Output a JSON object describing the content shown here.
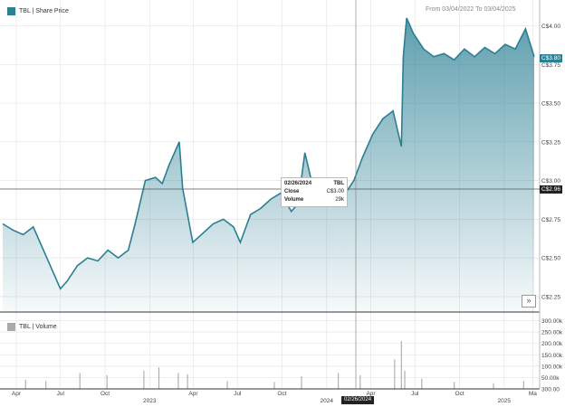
{
  "header": {
    "price_legend": "TBL | Share Price",
    "volume_legend": "TBL | Volume",
    "date_range": "From 03/04/2022 To 03/04/2025"
  },
  "tooltip": {
    "date": "02/26/2024",
    "ticker": "TBL",
    "close_label": "Close",
    "close_value": "C$3.00",
    "volume_label": "Volume",
    "volume_value": "29k"
  },
  "tags": {
    "last_price": "C$3.80",
    "cursor_price": "C$2.96",
    "cursor_date": "02/26/2024"
  },
  "colors": {
    "series": "#2a7f93",
    "volume": "#aaaaaa",
    "grid": "#e6e6e6",
    "tag_dark": "#222222"
  },
  "chart_data": [
    {
      "type": "area",
      "x_start": "2022-03-04",
      "x_end": "2025-03-04",
      "ylim": [
        2.15,
        4.12
      ],
      "y_ticks": [
        "C$2.25",
        "C$2.50",
        "C$2.75",
        "C$3.00",
        "C$3.25",
        "C$3.50",
        "C$3.75",
        "C$4.00"
      ],
      "y_tick_values": [
        2.25,
        2.5,
        2.75,
        3.0,
        3.25,
        3.5,
        3.75,
        4.0
      ],
      "x_ticks": [
        "Apr",
        "Jul",
        "Oct",
        "2023",
        "Apr",
        "Jul",
        "Oct",
        "2024",
        "Apr",
        "Jul",
        "Oct",
        "2025",
        "Ma"
      ],
      "x_tick_dates": [
        "2022-04-01",
        "2022-07-01",
        "2022-10-01",
        "2023-01-01",
        "2023-04-01",
        "2023-07-01",
        "2023-10-01",
        "2024-01-01",
        "2024-04-01",
        "2024-07-01",
        "2024-10-01",
        "2025-01-01",
        "2025-03-01"
      ],
      "series": [
        {
          "x": [
            "2022-03-04",
            "2022-03-25",
            "2022-04-15",
            "2022-05-06",
            "2022-05-27",
            "2022-06-17",
            "2022-07-01",
            "2022-07-15",
            "2022-08-05",
            "2022-08-26",
            "2022-09-16",
            "2022-10-07",
            "2022-10-28",
            "2022-11-18",
            "2022-12-02",
            "2022-12-23",
            "2023-01-13",
            "2023-01-27",
            "2023-02-10",
            "2023-03-03",
            "2023-03-10",
            "2023-03-31",
            "2023-04-21",
            "2023-05-12",
            "2023-06-02",
            "2023-06-23",
            "2023-07-07",
            "2023-07-28",
            "2023-08-18",
            "2023-09-08",
            "2023-09-29",
            "2023-10-20",
            "2023-11-03",
            "2023-11-17",
            "2023-12-08",
            "2023-12-29",
            "2024-01-19",
            "2024-02-09",
            "2024-02-26",
            "2024-03-15",
            "2024-04-05",
            "2024-04-26",
            "2024-05-17",
            "2024-06-03",
            "2024-06-07",
            "2024-06-14",
            "2024-06-28",
            "2024-07-19",
            "2024-08-09",
            "2024-08-30",
            "2024-09-20",
            "2024-10-11",
            "2024-11-01",
            "2024-11-22",
            "2024-12-13",
            "2025-01-03",
            "2025-01-24",
            "2025-02-14",
            "2025-03-04"
          ],
          "values": [
            2.72,
            2.68,
            2.65,
            2.7,
            2.55,
            2.4,
            2.3,
            2.35,
            2.45,
            2.5,
            2.48,
            2.55,
            2.5,
            2.55,
            2.72,
            3.0,
            3.02,
            2.98,
            3.1,
            3.25,
            2.95,
            2.6,
            2.66,
            2.72,
            2.75,
            2.7,
            2.6,
            2.78,
            2.82,
            2.88,
            2.92,
            2.8,
            2.85,
            3.18,
            2.9,
            2.88,
            2.9,
            2.92,
            3.0,
            3.15,
            3.3,
            3.4,
            3.45,
            3.22,
            3.8,
            4.05,
            3.95,
            3.85,
            3.8,
            3.82,
            3.78,
            3.85,
            3.8,
            3.86,
            3.82,
            3.88,
            3.85,
            3.98,
            3.8
          ]
        }
      ]
    },
    {
      "type": "bar",
      "ylim": [
        0,
        310000
      ],
      "y_ticks": [
        "300.00k",
        "250.00k",
        "200.00k",
        "150.00k",
        "100.00k",
        "50.00k",
        "300.00"
      ],
      "y_tick_values": [
        300000,
        250000,
        200000,
        150000,
        100000,
        50000,
        300
      ],
      "series": [
        {
          "x": [
            "2022-04-20",
            "2022-06-01",
            "2022-08-10",
            "2022-10-05",
            "2022-12-20",
            "2023-01-20",
            "2023-03-01",
            "2023-03-20",
            "2023-06-10",
            "2023-09-15",
            "2023-11-10",
            "2024-01-25",
            "2024-03-10",
            "2024-05-20",
            "2024-06-03",
            "2024-06-10",
            "2024-07-15",
            "2024-09-20",
            "2024-12-10",
            "2025-02-10"
          ],
          "values": [
            40000,
            35000,
            70000,
            60000,
            80000,
            95000,
            70000,
            65000,
            35000,
            30000,
            55000,
            70000,
            60000,
            130000,
            210000,
            80000,
            45000,
            30000,
            25000,
            35000
          ]
        }
      ]
    }
  ]
}
